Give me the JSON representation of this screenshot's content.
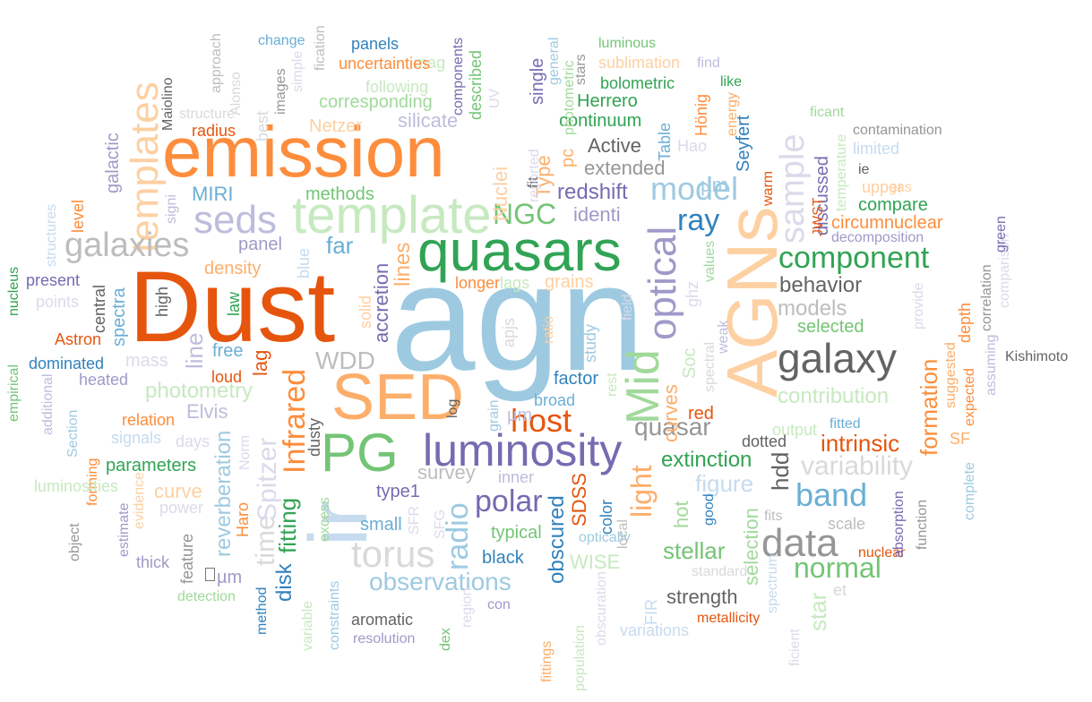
{
  "wordcloud": {
    "words": [
      {
        "text": "agn",
        "color": "#9ecae1"
      },
      {
        "text": "Dust",
        "color": "#e6550d"
      },
      {
        "text": "emission",
        "color": "#fd8d3c"
      },
      {
        "text": "SED",
        "color": "#fdae6b"
      },
      {
        "text": "quasars",
        "color": "#31a354"
      },
      {
        "text": "template",
        "color": "#c7e9c0"
      },
      {
        "text": "AGNs",
        "color": "#fdd0a2"
      },
      {
        "text": "ir",
        "color": "#c6dbef"
      },
      {
        "text": "PG",
        "color": "#74c476"
      },
      {
        "text": "luminosity",
        "color": "#756bb1"
      },
      {
        "text": "templates",
        "color": "#fdd0a2"
      },
      {
        "text": "galaxy",
        "color": "#636363"
      },
      {
        "text": "data",
        "color": "#969696"
      },
      {
        "text": "seds",
        "color": "#bcbddc"
      },
      {
        "text": "galaxies",
        "color": "#bdbdbd"
      },
      {
        "text": "sample",
        "color": "#dadaeb"
      },
      {
        "text": "optical",
        "color": "#9e9ac8"
      },
      {
        "text": "Mid",
        "color": "#a1d99b"
      },
      {
        "text": "torus",
        "color": "#d9d9d9"
      },
      {
        "text": "model",
        "color": "#9ecae1"
      },
      {
        "text": "ray",
        "color": "#3182bd"
      },
      {
        "text": "band",
        "color": "#6baed6"
      },
      {
        "text": "component",
        "color": "#31a354"
      },
      {
        "text": "host",
        "color": "#e6550d"
      },
      {
        "text": "Infrared",
        "color": "#fd8d3c"
      },
      {
        "text": "polar",
        "color": "#756bb1"
      },
      {
        "text": "radio",
        "color": "#9ecae1"
      },
      {
        "text": "light",
        "color": "#fdae6b"
      },
      {
        "text": "normal",
        "color": "#74c476"
      },
      {
        "text": "variability",
        "color": "#d9d9d9"
      },
      {
        "text": "NGC",
        "color": "#74c476"
      },
      {
        "text": "observations",
        "color": "#9ecae1"
      },
      {
        "text": "quasar",
        "color": "#969696"
      },
      {
        "text": "WDD",
        "color": "#bdbdbd"
      },
      {
        "text": "time",
        "color": "#d9d9d9"
      },
      {
        "text": "Spitzer",
        "color": "#dadaeb"
      },
      {
        "text": "intrinsic",
        "color": "#e6550d"
      },
      {
        "text": "behavior",
        "color": "#636363"
      },
      {
        "text": "models",
        "color": "#bdbdbd"
      },
      {
        "text": "figure",
        "color": "#c6dbef"
      },
      {
        "text": "star",
        "color": "#c7e9c0"
      },
      {
        "text": "formation",
        "color": "#fd8d3c"
      },
      {
        "text": "photometry",
        "color": "#c7e9c0"
      },
      {
        "text": "contribution",
        "color": "#c7e9c0"
      },
      {
        "text": "obscured",
        "color": "#3182bd"
      },
      {
        "text": "stellar",
        "color": "#74c476"
      },
      {
        "text": "extinction",
        "color": "#31a354"
      },
      {
        "text": "redshift",
        "color": "#756bb1"
      },
      {
        "text": "far",
        "color": "#6baed6"
      },
      {
        "text": "line",
        "color": "#bcbddc"
      },
      {
        "text": "hdd",
        "color": "#636363"
      },
      {
        "text": "fitting",
        "color": "#31a354"
      },
      {
        "text": "disk",
        "color": "#3182bd"
      },
      {
        "text": "reverberation",
        "color": "#9ecae1"
      },
      {
        "text": "curves",
        "color": "#fdae6b"
      },
      {
        "text": "lines",
        "color": "#fdae6b"
      },
      {
        "text": "accretion",
        "color": "#756bb1"
      },
      {
        "text": "Elvis",
        "color": "#bcbddc"
      },
      {
        "text": "curve",
        "color": "#fdd0a2"
      },
      {
        "text": "galactic",
        "color": "#9e9ac8"
      },
      {
        "text": "extended",
        "color": "#969696"
      },
      {
        "text": "Active",
        "color": "#636363"
      },
      {
        "text": "identi",
        "color": "#9e9ac8"
      },
      {
        "text": "Nuclei",
        "color": "#fdd0a2"
      },
      {
        "text": "Type",
        "color": "#fdae6b"
      },
      {
        "text": "strength",
        "color": "#636363"
      },
      {
        "text": "MIRI",
        "color": "#6baed6"
      },
      {
        "text": "survey",
        "color": "#bdbdbd"
      },
      {
        "text": "SDSS",
        "color": "#e6550d"
      },
      {
        "text": "WISE",
        "color": "#c7e9c0"
      },
      {
        "text": "hot",
        "color": "#a1d99b"
      },
      {
        "text": "selection",
        "color": "#a1d99b"
      },
      {
        "text": "lag",
        "color": "#e6550d"
      },
      {
        "text": "silicate",
        "color": "#bcbddc"
      },
      {
        "text": "corresponding",
        "color": "#a1d99b"
      },
      {
        "text": "continuum",
        "color": "#31a354"
      },
      {
        "text": "Herrero",
        "color": "#31a354"
      },
      {
        "text": "Seyfert",
        "color": "#3182bd"
      },
      {
        "text": "Table",
        "color": "#6baed6"
      },
      {
        "text": "µm",
        "color": "#9ecae1"
      },
      {
        "text": "dusty",
        "color": "#636363"
      },
      {
        "text": "apjs",
        "color": "#d9d9d9"
      },
      {
        "text": "grains",
        "color": "#fdd0a2"
      },
      {
        "text": "density",
        "color": "#fdae6b"
      },
      {
        "text": "panel",
        "color": "#9e9ac8"
      },
      {
        "text": "methods",
        "color": "#74c476"
      },
      {
        "text": "selected",
        "color": "#74c476"
      },
      {
        "text": "spectra",
        "color": "#6baed6"
      },
      {
        "text": "central",
        "color": "#636363"
      },
      {
        "text": "high",
        "color": "#636363"
      },
      {
        "text": "law",
        "color": "#31a354"
      },
      {
        "text": "blue",
        "color": "#c6dbef"
      },
      {
        "text": "free",
        "color": "#6baed6"
      },
      {
        "text": "mass",
        "color": "#dadaeb"
      },
      {
        "text": "loud",
        "color": "#e6550d"
      },
      {
        "text": "study",
        "color": "#9ecae1"
      },
      {
        "text": "factor",
        "color": "#3182bd"
      },
      {
        "text": "broad",
        "color": "#6baed6"
      },
      {
        "text": "red",
        "color": "#e6550d"
      },
      {
        "text": "log",
        "color": "#636363"
      },
      {
        "text": "type1",
        "color": "#756bb1"
      },
      {
        "text": "small",
        "color": "#6baed6"
      },
      {
        "text": "typical",
        "color": "#74c476"
      },
      {
        "text": "black",
        "color": "#3182bd"
      },
      {
        "text": "color",
        "color": "#3182bd"
      },
      {
        "text": "parameters",
        "color": "#31a354"
      },
      {
        "text": "relation",
        "color": "#fd8d3c"
      },
      {
        "text": "dominated",
        "color": "#3182bd"
      },
      {
        "text": "heated",
        "color": "#9e9ac8"
      },
      {
        "text": "Astron",
        "color": "#e6550d"
      },
      {
        "text": "present",
        "color": "#756bb1"
      },
      {
        "text": "points",
        "color": "#dadaeb"
      },
      {
        "text": "signals",
        "color": "#c6dbef"
      },
      {
        "text": "days",
        "color": "#dadaeb"
      },
      {
        "text": "power",
        "color": "#dadaeb"
      },
      {
        "text": "thick",
        "color": "#9e9ac8"
      },
      {
        "text": "feature",
        "color": "#969696"
      },
      {
        "text": "µm",
        "color": "#9e9ac8"
      },
      {
        "text": "detection",
        "color": "#a1d99b"
      },
      {
        "text": "Haro",
        "color": "#fd8d3c"
      },
      {
        "text": "Norm",
        "color": "#dadaeb"
      },
      {
        "text": "excess",
        "color": "#a1d99b"
      },
      {
        "text": "SFR",
        "color": "#dadaeb"
      },
      {
        "text": "SFG",
        "color": "#dadaeb"
      },
      {
        "text": "inner",
        "color": "#bcbddc"
      },
      {
        "text": "aromatic",
        "color": "#636363"
      },
      {
        "text": "resolution",
        "color": "#9e9ac8"
      },
      {
        "text": "constraints",
        "color": "#9ecae1"
      },
      {
        "text": "method",
        "color": "#3182bd"
      },
      {
        "text": "variable",
        "color": "#c7e9c0"
      },
      {
        "text": "dex",
        "color": "#74c476"
      },
      {
        "text": "region",
        "color": "#dadaeb"
      },
      {
        "text": "con",
        "color": "#9e9ac8"
      },
      {
        "text": "fittings",
        "color": "#fdae6b"
      },
      {
        "text": "population",
        "color": "#c7e9c0"
      },
      {
        "text": "obscuration",
        "color": "#dadaeb"
      },
      {
        "text": "optically",
        "color": "#9ecae1"
      },
      {
        "text": "local",
        "color": "#bdbdbd"
      },
      {
        "text": "FIR",
        "color": "#c6dbef"
      },
      {
        "text": "variations",
        "color": "#c6dbef"
      },
      {
        "text": "metallicity",
        "color": "#e6550d"
      },
      {
        "text": "standard",
        "color": "#d9d9d9"
      },
      {
        "text": "good",
        "color": "#3182bd"
      },
      {
        "text": "fits",
        "color": "#bdbdbd"
      },
      {
        "text": "scale",
        "color": "#bdbdbd"
      },
      {
        "text": "nuclear",
        "color": "#e6550d"
      },
      {
        "text": "et",
        "color": "#d9d9d9"
      },
      {
        "text": "spectrum",
        "color": "#c6dbef"
      },
      {
        "text": "ficient",
        "color": "#dadaeb"
      },
      {
        "text": "absorption",
        "color": "#756bb1"
      },
      {
        "text": "function",
        "color": "#969696"
      },
      {
        "text": "output",
        "color": "#c7e9c0"
      },
      {
        "text": "fitted",
        "color": "#6baed6"
      },
      {
        "text": "dotted",
        "color": "#636363"
      },
      {
        "text": "SF",
        "color": "#fdae6b"
      },
      {
        "text": "Kishimoto",
        "color": "#636363"
      },
      {
        "text": "suggested",
        "color": "#fdae6b"
      },
      {
        "text": "expected",
        "color": "#fd8d3c"
      },
      {
        "text": "complete",
        "color": "#9ecae1"
      },
      {
        "text": "assuming",
        "color": "#bcbddc"
      },
      {
        "text": "provide",
        "color": "#dadaeb"
      },
      {
        "text": "depth",
        "color": "#fd8d3c"
      },
      {
        "text": "correlation",
        "color": "#969696"
      },
      {
        "text": "comparison",
        "color": "#dadaeb"
      },
      {
        "text": "green",
        "color": "#756bb1"
      },
      {
        "text": "compare",
        "color": "#31a354"
      },
      {
        "text": "circumnuclear",
        "color": "#fd8d3c"
      },
      {
        "text": "decomposition",
        "color": "#9e9ac8"
      },
      {
        "text": "gas",
        "color": "#fdd0a2"
      },
      {
        "text": "upper",
        "color": "#fdd0a2"
      },
      {
        "text": "ie",
        "color": "#636363"
      },
      {
        "text": "temperature",
        "color": "#c7e9c0"
      },
      {
        "text": "limited",
        "color": "#c6dbef"
      },
      {
        "text": "contamination",
        "color": "#969696"
      },
      {
        "text": "ficant",
        "color": "#a1d99b"
      },
      {
        "text": "discussed",
        "color": "#756bb1"
      },
      {
        "text": "JWST",
        "color": "#e6550d"
      },
      {
        "text": "warm",
        "color": "#e6550d"
      },
      {
        "text": "Hao",
        "color": "#dadaeb"
      },
      {
        "text": "Hönig",
        "color": "#fd8d3c"
      },
      {
        "text": "energy",
        "color": "#fdae6b"
      },
      {
        "text": "like",
        "color": "#31a354"
      },
      {
        "text": "find",
        "color": "#bcbddc"
      },
      {
        "text": "sublimation",
        "color": "#fdd0a2"
      },
      {
        "text": "bolometric",
        "color": "#31a354"
      },
      {
        "text": "luminous",
        "color": "#74c476"
      },
      {
        "text": "stars",
        "color": "#969696"
      },
      {
        "text": "general",
        "color": "#9ecae1"
      },
      {
        "text": "single",
        "color": "#756bb1"
      },
      {
        "text": "photometric",
        "color": "#a1d99b"
      },
      {
        "text": "pc",
        "color": "#fdae6b"
      },
      {
        "text": "fit",
        "color": "#636363"
      },
      {
        "text": "reported",
        "color": "#dadaeb"
      },
      {
        "text": "UV",
        "color": "#dadaeb"
      },
      {
        "text": "described",
        "color": "#74c476"
      },
      {
        "text": "components",
        "color": "#756bb1"
      },
      {
        "text": "mag",
        "color": "#c7e9c0"
      },
      {
        "text": "panels",
        "color": "#3182bd"
      },
      {
        "text": "uncertainties",
        "color": "#fd8d3c"
      },
      {
        "text": "following",
        "color": "#c7e9c0"
      },
      {
        "text": "fication",
        "color": "#bdbdbd"
      },
      {
        "text": "change",
        "color": "#6baed6"
      },
      {
        "text": "simple",
        "color": "#dadaeb"
      },
      {
        "text": "images",
        "color": "#969696"
      },
      {
        "text": "best",
        "color": "#d9d9d9"
      },
      {
        "text": "Alonso",
        "color": "#d9d9d9"
      },
      {
        "text": "approach",
        "color": "#bdbdbd"
      },
      {
        "text": "Maiolino",
        "color": "#636363"
      },
      {
        "text": "structure",
        "color": "#d9d9d9"
      },
      {
        "text": "radius",
        "color": "#e6550d"
      },
      {
        "text": "Netzer",
        "color": "#fdd0a2"
      },
      {
        "text": "signi",
        "color": "#bcbddc"
      },
      {
        "text": "level",
        "color": "#fd8d3c"
      },
      {
        "text": "structures",
        "color": "#c6dbef"
      },
      {
        "text": "nucleus",
        "color": "#31a354"
      },
      {
        "text": "empirical",
        "color": "#74c476"
      },
      {
        "text": "additional",
        "color": "#bcbddc"
      },
      {
        "text": "Section",
        "color": "#9ecae1"
      },
      {
        "text": "forming",
        "color": "#fd8d3c"
      },
      {
        "text": "luminosities",
        "color": "#c7e9c0"
      },
      {
        "text": "object",
        "color": "#969696"
      },
      {
        "text": "estimate",
        "color": "#9e9ac8"
      },
      {
        "text": "evidence",
        "color": "#fdd0a2"
      },
      {
        "text": "longer",
        "color": "#fd8d3c"
      },
      {
        "text": "lags",
        "color": "#c7e9c0"
      },
      {
        "text": "solid",
        "color": "#fdd0a2"
      },
      {
        "text": "ratio",
        "color": "#fdd0a2"
      },
      {
        "text": "field",
        "color": "#dadaeb"
      },
      {
        "text": "rest",
        "color": "#c7e9c0"
      },
      {
        "text": "grain",
        "color": "#9ecae1"
      },
      {
        "text": "µm",
        "color": "#bcbddc"
      },
      {
        "text": "ghz",
        "color": "#dadaeb"
      },
      {
        "text": "values",
        "color": "#a1d99b"
      },
      {
        "text": "Soc",
        "color": "#c7e9c0"
      },
      {
        "text": "spectral",
        "color": "#d9d9d9"
      },
      {
        "text": "weak",
        "color": "#bcbddc"
      },
      {
        "text": "value",
        "color": "#d9d9d9"
      }
    ]
  }
}
